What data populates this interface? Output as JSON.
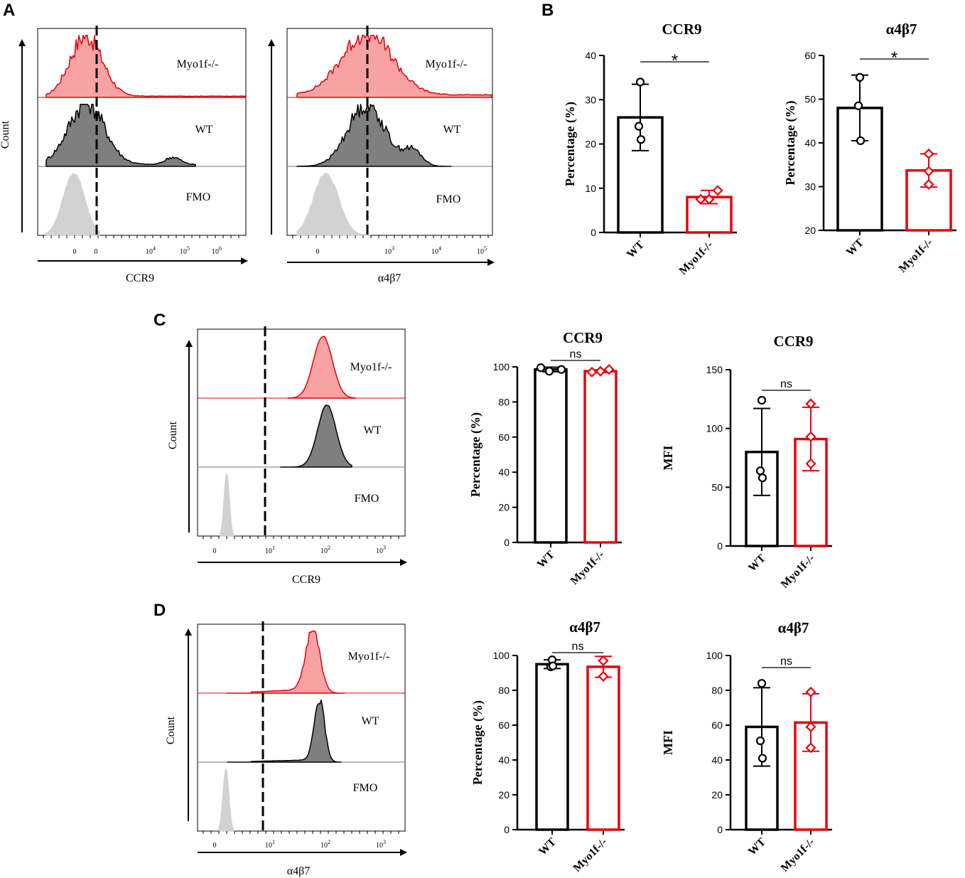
{
  "panels": {
    "A": "A",
    "B": "B",
    "C": "C",
    "D": "D"
  },
  "histograms": [
    {
      "id": "A1",
      "xlabel": "CCR9",
      "ylabel": "Count",
      "rows": [
        "Myo1f-/-",
        "WT",
        "FMO"
      ],
      "ticks": [
        {
          "b": "0"
        },
        {
          "b": "0"
        },
        {
          "b": "10",
          "e": "4"
        },
        {
          "b": "10",
          "e": "5"
        },
        {
          "b": "10",
          "e": "6"
        }
      ]
    },
    {
      "id": "A2",
      "xlabel": "α4β7",
      "ylabel": "",
      "rows": [
        "Myo1f-/-",
        "WT",
        "FMO"
      ],
      "ticks": [
        {
          "b": "0"
        },
        {
          "b": "10",
          "e": "3"
        },
        {
          "b": "10",
          "e": "4"
        },
        {
          "b": "10",
          "e": "5"
        }
      ]
    },
    {
      "id": "C",
      "xlabel": "CCR9",
      "ylabel": "Count",
      "rows": [
        "Myo1f-/-",
        "WT",
        "FMO"
      ],
      "ticks": [
        {
          "b": "0"
        },
        {
          "b": "10",
          "e": "1"
        },
        {
          "b": "10",
          "e": "2"
        },
        {
          "b": "10",
          "e": "3"
        }
      ]
    },
    {
      "id": "D",
      "xlabel": "α4β7",
      "ylabel": "Count",
      "rows": [
        "Myo1f-/-",
        "WT",
        "FMO"
      ],
      "ticks": [
        {
          "b": "0"
        },
        {
          "b": "10",
          "e": "1"
        },
        {
          "b": "10",
          "e": "2"
        },
        {
          "b": "10",
          "e": "3"
        }
      ]
    }
  ],
  "colors": {
    "wt": "#000000",
    "ko": "#e8000b",
    "ko_fill": "#f7a3a3",
    "wt_fill": "#7f7f7f",
    "fmo_fill": "#d2d2d2"
  },
  "chart_data": [
    {
      "id": "B1",
      "type": "bar",
      "title": "CCR9",
      "ylabel": "Percentage (%)",
      "categories": [
        "WT",
        "Myo1f-/-"
      ],
      "ylim": [
        0,
        40
      ],
      "yticks": [
        0,
        10,
        20,
        30,
        40
      ],
      "means": [
        26,
        8
      ],
      "sd": [
        7.5,
        1.5
      ],
      "points": [
        [
          34,
          24,
          21
        ],
        [
          9.5,
          7.5,
          7.5
        ]
      ],
      "significance": "*"
    },
    {
      "id": "B2",
      "type": "bar",
      "title": "α4β7",
      "ylabel": "Percentage (%)",
      "categories": [
        "WT",
        "Myo1f-/-"
      ],
      "ylim": [
        20,
        60
      ],
      "yticks": [
        20,
        30,
        40,
        50,
        60
      ],
      "means": [
        48,
        33.7
      ],
      "sd": [
        7.5,
        3.8
      ],
      "points": [
        [
          55,
          48.5,
          40.5
        ],
        [
          37.5,
          33.5,
          30.5
        ]
      ],
      "significance": "*"
    },
    {
      "id": "C1",
      "type": "bar",
      "title": "CCR9",
      "ylabel": "Percentage (%)",
      "categories": [
        "WT",
        "Myo1f-/-"
      ],
      "ylim": [
        0,
        100
      ],
      "yticks": [
        0,
        20,
        40,
        60,
        80,
        100
      ],
      "means": [
        98.5,
        97.5
      ],
      "sd": [
        1.3,
        0.8
      ],
      "points": [
        [
          99.5,
          97.5,
          98.5
        ],
        [
          98.5,
          97,
          97.5
        ]
      ],
      "significance": "ns"
    },
    {
      "id": "C2",
      "type": "bar",
      "title": "CCR9",
      "ylabel": "MFI",
      "categories": [
        "WT",
        "Myo1f-/-"
      ],
      "ylim": [
        0,
        150
      ],
      "yticks": [
        0,
        50,
        100,
        150
      ],
      "means": [
        80,
        91
      ],
      "sd": [
        37,
        27
      ],
      "points": [
        [
          124,
          64,
          58
        ],
        [
          121,
          93,
          70
        ]
      ],
      "significance": "ns"
    },
    {
      "id": "D1",
      "type": "bar",
      "title": "α4β7",
      "ylabel": "Percentage (%)",
      "categories": [
        "WT",
        "Myo1f-/-"
      ],
      "ylim": [
        0,
        100
      ],
      "yticks": [
        0,
        20,
        40,
        60,
        80,
        100
      ],
      "means": [
        95,
        93.5
      ],
      "sd": [
        2.5,
        6
      ],
      "points": [
        [
          97.5,
          93.5,
          94
        ],
        [
          97,
          97,
          88
        ]
      ],
      "significance": "ns"
    },
    {
      "id": "D2",
      "type": "bar",
      "title": "α4β7",
      "ylabel": "MFI",
      "categories": [
        "WT",
        "Myo1f-/-"
      ],
      "ylim": [
        0,
        100
      ],
      "yticks": [
        0,
        20,
        40,
        60,
        80,
        100
      ],
      "means": [
        59,
        61.5
      ],
      "sd": [
        22.5,
        16.5
      ],
      "points": [
        [
          84,
          51,
          41
        ],
        [
          79,
          59,
          47
        ]
      ],
      "significance": "ns"
    }
  ]
}
